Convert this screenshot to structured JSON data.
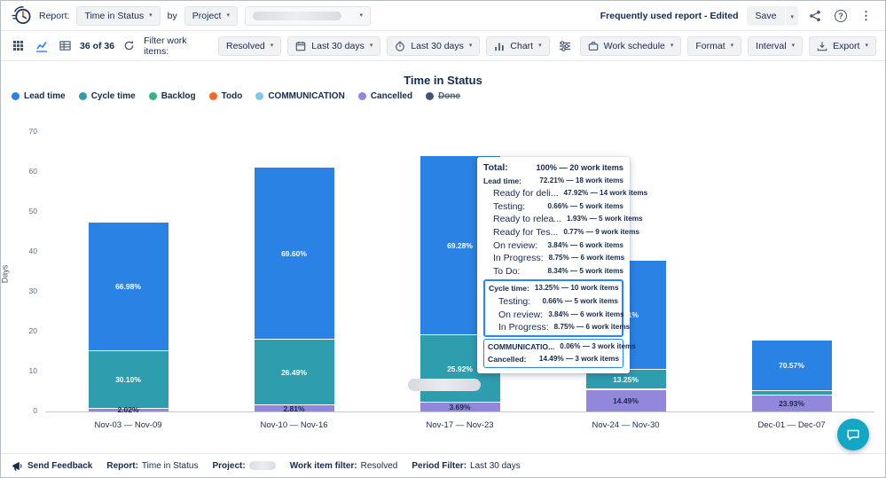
{
  "header": {
    "report_label": "Report:",
    "report_select_value": "Time in Status",
    "by_label": "by",
    "group_select_value": "Project",
    "frequently_used": "Frequently used report - Edited",
    "save_label": "Save"
  },
  "toolbar": {
    "count_text": "36 of 36",
    "filter_label": "Filter work items:",
    "filter_value": "Resolved",
    "period_1": "Last 30 days",
    "period_2": "Last 30 days",
    "chart_label": "Chart",
    "work_schedule_label": "Work schedule",
    "format_label": "Format",
    "interval_label": "Interval",
    "export_label": "Export"
  },
  "chart_data": {
    "type": "bar",
    "stacked": true,
    "title": "Time in Status",
    "ylabel": "Days",
    "ylim": [
      0,
      70
    ],
    "yticks": [
      0,
      10,
      20,
      30,
      40,
      50,
      60,
      70
    ],
    "grid": false,
    "legend_position": "top-left",
    "legend": [
      {
        "name": "Lead time",
        "color": "#2A82E4"
      },
      {
        "name": "Cycle time",
        "color": "#2E9DAD"
      },
      {
        "name": "Backlog",
        "color": "#36B37E"
      },
      {
        "name": "Todo",
        "color": "#F9661E"
      },
      {
        "name": "COMMUNICATION",
        "color": "#7FC9EC"
      },
      {
        "name": "Cancelled",
        "color": "#9287DB"
      },
      {
        "name": "Done",
        "color": "#44546F",
        "disabled": true
      }
    ],
    "categories": [
      "Nov-03 — Nov-09",
      "Nov-10 — Nov-16",
      "Nov-17 — Nov-23",
      "Nov-24 — Nov-30",
      "Dec-01 — Dec-07"
    ],
    "bars": [
      {
        "total_days": 48,
        "segments": [
          {
            "series": "Cancelled",
            "pct": 2.02,
            "label": "2.02%",
            "label_style": "dark"
          },
          {
            "series": "Cycle time",
            "pct": 30.1,
            "label": "30.10%",
            "label_style": "light"
          },
          {
            "series": "Lead time",
            "pct": 66.98,
            "label": "66.98%",
            "label_style": "light"
          }
        ]
      },
      {
        "total_days": 62,
        "segments": [
          {
            "series": "Cancelled",
            "pct": 2.81,
            "label": "2.81%",
            "label_style": "dark"
          },
          {
            "series": "Cycle time",
            "pct": 26.49,
            "label": "26.49%",
            "label_style": "light"
          },
          {
            "series": "Lead time",
            "pct": 69.6,
            "label": "69.60%",
            "label_style": "light"
          }
        ]
      },
      {
        "total_days": 65,
        "segments": [
          {
            "series": "Cancelled",
            "pct": 3.69,
            "label": "3.69%",
            "label_style": "dark"
          },
          {
            "series": "Cycle time",
            "pct": 25.92,
            "label": "25.92%",
            "label_style": "light"
          },
          {
            "series": "Lead time",
            "pct": 69.28,
            "label": "69.28%",
            "label_style": "light"
          }
        ]
      },
      {
        "total_days": 38,
        "segments": [
          {
            "series": "Cancelled",
            "pct": 14.49,
            "label": "14.49%",
            "label_style": "dark"
          },
          {
            "series": "COMMUNICATION",
            "pct": 0.06,
            "label": "",
            "label_style": "dark"
          },
          {
            "series": "Cycle time",
            "pct": 13.25,
            "label": "13.25%",
            "label_style": "light"
          },
          {
            "series": "Lead time",
            "pct": 72.21,
            "label": "72.21%",
            "label_style": "light"
          }
        ]
      },
      {
        "total_days": 18,
        "segments": [
          {
            "series": "Cancelled",
            "pct": 23.93,
            "label": "23.93%",
            "label_style": "dark"
          },
          {
            "series": "Cycle time",
            "pct": 5.5,
            "label": "",
            "label_style": "light"
          },
          {
            "series": "Lead time",
            "pct": 70.57,
            "label": "70.57%",
            "label_style": "light"
          }
        ]
      }
    ]
  },
  "tooltip": {
    "total": {
      "label": "Total:",
      "value": "100% — 20 work items"
    },
    "sections": [
      {
        "box": "none",
        "rows": [
          {
            "label": "Lead time:",
            "value": "72.21% — 18 work items",
            "indent": false,
            "bold": true
          },
          {
            "label": "Ready for deli...",
            "value": "47.92% — 14 work items",
            "indent": true,
            "bold": false
          },
          {
            "label": "Testing:",
            "value": "0.66% — 5 work items",
            "indent": true,
            "bold": false
          },
          {
            "label": "Ready to relea...",
            "value": "1.93% — 5 work items",
            "indent": true,
            "bold": false
          },
          {
            "label": "Ready for Tes...",
            "value": "0.77% — 9 work items",
            "indent": true,
            "bold": false
          },
          {
            "label": "On review:",
            "value": "3.84% — 6 work items",
            "indent": true,
            "bold": false
          },
          {
            "label": "In Progress:",
            "value": "8.75% — 6 work items",
            "indent": true,
            "bold": false
          },
          {
            "label": "To Do:",
            "value": "8.34% — 5 work items",
            "indent": true,
            "bold": false
          }
        ]
      },
      {
        "box": "strong",
        "rows": [
          {
            "label": "Cycle time:",
            "value": "13.25% — 10 work items",
            "indent": false,
            "bold": true
          },
          {
            "label": "Testing:",
            "value": "0.66% — 5 work items",
            "indent": true,
            "bold": false
          },
          {
            "label": "On review:",
            "value": "3.84% — 6 work items",
            "indent": true,
            "bold": false
          },
          {
            "label": "In Progress:",
            "value": "8.75% — 6 work items",
            "indent": true,
            "bold": false
          }
        ]
      },
      {
        "box": "thin",
        "rows": [
          {
            "label": "COMMUNICATIO...",
            "value": "0.06% — 3 work items",
            "indent": false,
            "bold": true
          },
          {
            "label": "Cancelled:",
            "value": "14.49% — 3 work items",
            "indent": false,
            "bold": true
          }
        ]
      }
    ]
  },
  "footer": {
    "send_feedback": "Send Feedback",
    "items": [
      {
        "label": "Report:",
        "value": "Time in Status",
        "skeleton": false
      },
      {
        "label": "Project:",
        "value": "",
        "skeleton": true
      },
      {
        "label": "Work item filter:",
        "value": "Resolved",
        "skeleton": false
      },
      {
        "label": "Period Filter:",
        "value": "Last 30 days",
        "skeleton": false
      }
    ]
  },
  "colors": {
    "accent_blue": "#2684FF",
    "text_primary": "#172B4D",
    "text_secondary": "#44546E",
    "tooltip_highlight_border": "#2684FF",
    "chat_button": "#14A7C4",
    "bar_label_light": "#FFFFFF",
    "bar_label_dark": "#172B4D"
  }
}
